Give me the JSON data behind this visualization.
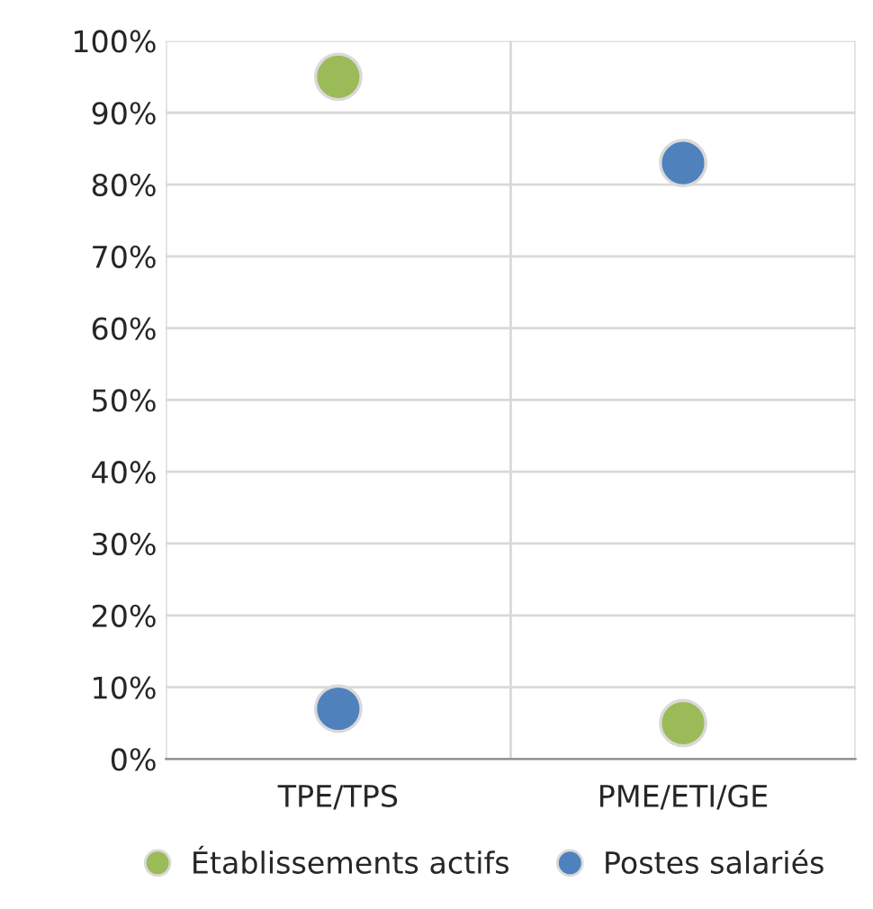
{
  "chart_data": {
    "type": "scatter",
    "categories": [
      "TPE/TPS",
      "PME/ETI/GE"
    ],
    "series": [
      {
        "name": "Établissements actifs",
        "color": "#9bbb59",
        "values": [
          95,
          5
        ]
      },
      {
        "name": "Postes salariés",
        "color": "#4f81bd",
        "values": [
          7,
          83
        ]
      }
    ],
    "ylim": [
      0,
      100
    ],
    "yticks": [
      {
        "value": 0,
        "label": "0%"
      },
      {
        "value": 10,
        "label": "10%"
      },
      {
        "value": 20,
        "label": "20%"
      },
      {
        "value": 30,
        "label": "30%"
      },
      {
        "value": 40,
        "label": "40%"
      },
      {
        "value": 50,
        "label": "50%"
      },
      {
        "value": 60,
        "label": "60%"
      },
      {
        "value": 70,
        "label": "70%"
      },
      {
        "value": 80,
        "label": "80%"
      },
      {
        "value": 90,
        "label": "90%"
      },
      {
        "value": 100,
        "label": "100%"
      }
    ],
    "grid": true,
    "legend": "bottom",
    "marker": "circle"
  }
}
